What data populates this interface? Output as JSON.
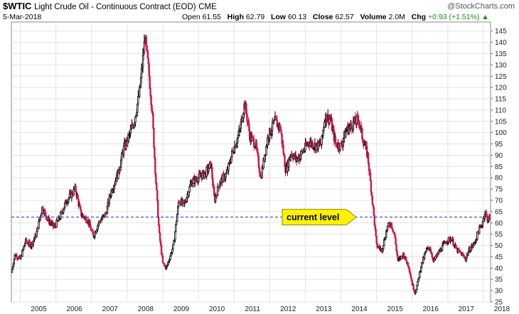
{
  "header": {
    "symbol": "$WTIC",
    "description": "Light Crude Oil - Continuous Contract (EOD)",
    "exchange": "CME",
    "date": "5-Mar-2018",
    "open_label": "Open",
    "open": "61.55",
    "high_label": "High",
    "high": "62.79",
    "low_label": "Low",
    "low": "60.13",
    "close_label": "Close",
    "close": "62.57",
    "volume_label": "Volume",
    "volume": "2.0M",
    "chg_label": "Chg",
    "chg": "+0.93 (+1.51%)",
    "chg_arrow": "▲",
    "brand": "@StockCharts.com"
  },
  "annotation": {
    "label": "current level",
    "level": 62.57
  },
  "colors": {
    "up": "#000000",
    "down": "#cc1a4a",
    "level_line": "#1f2fb8",
    "callout_fill": "#fff200",
    "callout_border": "#8a8a00"
  },
  "chart_data": {
    "type": "candlestick",
    "title": "$WTIC Light Crude Oil - Continuous Contract (EOD) CME",
    "period": "weekly",
    "x_start": 2004.75,
    "x_end": 2018.2,
    "ylim": [
      25,
      149
    ],
    "yticks": [
      25,
      30,
      35,
      40,
      45,
      50,
      55,
      60,
      65,
      70,
      75,
      80,
      85,
      90,
      95,
      100,
      105,
      110,
      115,
      120,
      125,
      130,
      135,
      140,
      145
    ],
    "xticks": [
      "2005",
      "2006",
      "2007",
      "2008",
      "2009",
      "2010",
      "2011",
      "2012",
      "2013",
      "2014",
      "2015",
      "2016",
      "2017",
      "2018"
    ],
    "grid": true,
    "anchors": [
      [
        2004.75,
        38
      ],
      [
        2004.85,
        46
      ],
      [
        2005.0,
        44
      ],
      [
        2005.15,
        52
      ],
      [
        2005.3,
        50
      ],
      [
        2005.45,
        55
      ],
      [
        2005.62,
        67
      ],
      [
        2005.75,
        62
      ],
      [
        2005.95,
        58
      ],
      [
        2006.1,
        62
      ],
      [
        2006.3,
        70
      ],
      [
        2006.55,
        75
      ],
      [
        2006.7,
        64
      ],
      [
        2006.9,
        61
      ],
      [
        2007.05,
        54
      ],
      [
        2007.2,
        60
      ],
      [
        2007.4,
        64
      ],
      [
        2007.55,
        74
      ],
      [
        2007.75,
        82
      ],
      [
        2007.9,
        93
      ],
      [
        2008.0,
        96
      ],
      [
        2008.2,
        105
      ],
      [
        2008.35,
        118
      ],
      [
        2008.5,
        142
      ],
      [
        2008.6,
        128
      ],
      [
        2008.7,
        110
      ],
      [
        2008.8,
        80
      ],
      [
        2008.9,
        55
      ],
      [
        2009.0,
        42
      ],
      [
        2009.1,
        40
      ],
      [
        2009.3,
        50
      ],
      [
        2009.45,
        70
      ],
      [
        2009.6,
        68
      ],
      [
        2009.8,
        78
      ],
      [
        2010.0,
        80
      ],
      [
        2010.2,
        82
      ],
      [
        2010.35,
        86
      ],
      [
        2010.45,
        70
      ],
      [
        2010.6,
        78
      ],
      [
        2010.8,
        82
      ],
      [
        2010.95,
        91
      ],
      [
        2011.15,
        100
      ],
      [
        2011.3,
        113
      ],
      [
        2011.45,
        98
      ],
      [
        2011.6,
        95
      ],
      [
        2011.75,
        80
      ],
      [
        2011.95,
        98
      ],
      [
        2012.15,
        105
      ],
      [
        2012.3,
        102
      ],
      [
        2012.45,
        83
      ],
      [
        2012.6,
        91
      ],
      [
        2012.75,
        88
      ],
      [
        2012.95,
        92
      ],
      [
        2013.1,
        96
      ],
      [
        2013.3,
        94
      ],
      [
        2013.45,
        95
      ],
      [
        2013.55,
        107
      ],
      [
        2013.7,
        106
      ],
      [
        2013.85,
        95
      ],
      [
        2014.0,
        94
      ],
      [
        2014.15,
        101
      ],
      [
        2014.35,
        104
      ],
      [
        2014.5,
        106
      ],
      [
        2014.6,
        98
      ],
      [
        2014.75,
        90
      ],
      [
        2014.9,
        67
      ],
      [
        2015.0,
        50
      ],
      [
        2015.15,
        48
      ],
      [
        2015.3,
        58
      ],
      [
        2015.4,
        60
      ],
      [
        2015.5,
        55
      ],
      [
        2015.6,
        43
      ],
      [
        2015.75,
        46
      ],
      [
        2015.9,
        41
      ],
      [
        2016.0,
        33
      ],
      [
        2016.08,
        29
      ],
      [
        2016.15,
        33
      ],
      [
        2016.25,
        41
      ],
      [
        2016.4,
        48
      ],
      [
        2016.5,
        49
      ],
      [
        2016.6,
        43
      ],
      [
        2016.75,
        47
      ],
      [
        2016.95,
        52
      ],
      [
        2017.1,
        53
      ],
      [
        2017.25,
        48
      ],
      [
        2017.4,
        46
      ],
      [
        2017.5,
        44
      ],
      [
        2017.6,
        48
      ],
      [
        2017.75,
        51
      ],
      [
        2017.85,
        56
      ],
      [
        2017.95,
        59
      ],
      [
        2018.05,
        65
      ],
      [
        2018.1,
        62
      ],
      [
        2018.16,
        61
      ],
      [
        2018.17,
        62.57
      ]
    ]
  }
}
